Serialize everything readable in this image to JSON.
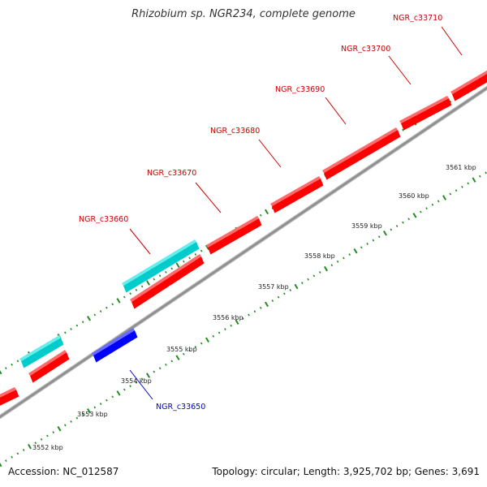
{
  "title": "Rhizobium sp. NGR234, complete genome",
  "footer": {
    "accession": "Accession: NC_012587",
    "summary": "Topology: circular; Length: 3,925,702 bp; Genes: 3,691"
  },
  "colors": {
    "forward_gene": "#ff0000",
    "reverse_gene": "#0000ff",
    "rna_feature": "#00cccc",
    "backbone": "#909090",
    "ticks": "#228b22"
  },
  "kbp_labels": [
    "3552 kbp",
    "3553 kbp",
    "3554 kbp",
    "3555 kbp",
    "3556 kbp",
    "3557 kbp",
    "3558 kbp",
    "3559 kbp",
    "3560 kbp",
    "3561 kbp"
  ],
  "gene_labels": [
    {
      "name": "NGR_c33650",
      "color": "#0000cc"
    },
    {
      "name": "NGR_c33660",
      "color": "#cc0000"
    },
    {
      "name": "NGR_c33670",
      "color": "#cc0000"
    },
    {
      "name": "NGR_c33680",
      "color": "#cc0000"
    },
    {
      "name": "NGR_c33690",
      "color": "#cc0000"
    },
    {
      "name": "NGR_c33700",
      "color": "#cc0000"
    },
    {
      "name": "NGR_c33710",
      "color": "#cc0000"
    }
  ]
}
